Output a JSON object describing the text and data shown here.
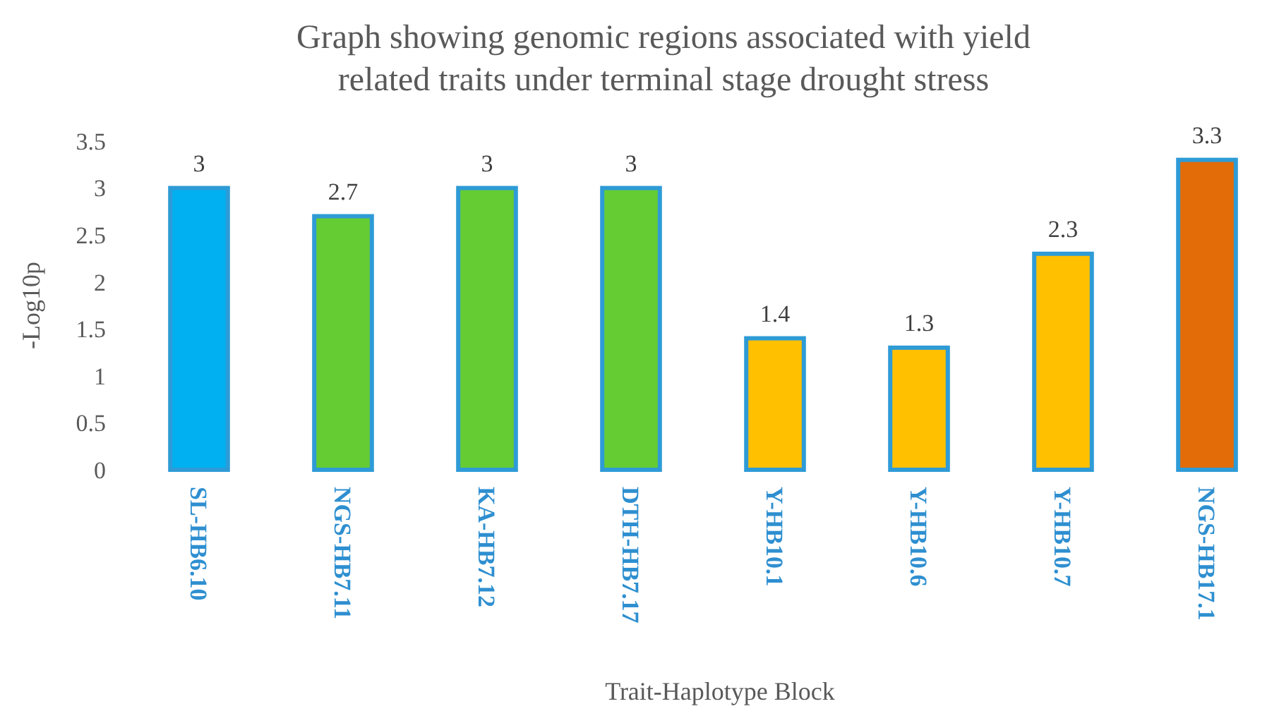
{
  "chart_data": {
    "type": "bar",
    "title": "Graph showing genomic regions associated with yield\nrelated traits under terminal stage drought stress",
    "xlabel": "Trait-Haplotype Block",
    "ylabel": "-Log10p",
    "categories": [
      "SL-HB6.10",
      "NGS-HB7.11",
      "KA-HB7.12",
      "DTH-HB7.17",
      "Y-HB10.1",
      "Y-HB10.6",
      "Y-HB10.7",
      "NGS-HB17.1"
    ],
    "values": [
      3,
      2.7,
      3,
      3,
      1.4,
      1.3,
      2.3,
      3.3
    ],
    "colors": [
      "#00b0f0",
      "#66cc33",
      "#66cc33",
      "#66cc33",
      "#ffc000",
      "#ffc000",
      "#ffc000",
      "#e36c09"
    ],
    "ylim": [
      0,
      3.5
    ],
    "yticks": [
      0,
      0.5,
      1,
      1.5,
      2,
      2.5,
      3,
      3.5
    ],
    "data_labels": true,
    "grid": false
  }
}
